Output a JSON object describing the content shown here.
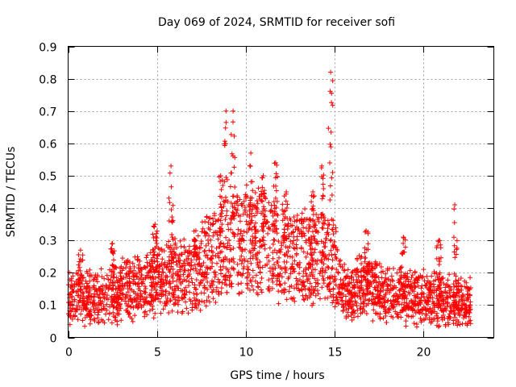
{
  "chart_data": {
    "type": "scatter",
    "title": "Day 069 of 2024, SRMTID for receiver sofi",
    "xlabel": "GPS time / hours",
    "ylabel": "SRMTID / TECUs",
    "xlim": [
      0,
      24
    ],
    "ylim": [
      0,
      0.9
    ],
    "xticks": [
      0,
      5,
      10,
      15,
      20
    ],
    "yticks": [
      0,
      0.1,
      0.2,
      0.3,
      0.4,
      0.5,
      0.6,
      0.7,
      0.8,
      0.9
    ],
    "xtick_labels": [
      "0",
      "5",
      "10",
      "15",
      "20"
    ],
    "ytick_labels": [
      "0",
      "0.1",
      "0.2",
      "0.3",
      "0.4",
      "0.5",
      "0.6",
      "0.7",
      "0.8",
      "0.9"
    ],
    "grid": true,
    "marker": "+",
    "color": "#ff0000",
    "series": [
      {
        "name": "SRMTID",
        "x_range": [
          0,
          22.7
        ],
        "baseline_trend": [
          {
            "x": 0,
            "y": 0.11
          },
          {
            "x": 2,
            "y": 0.12
          },
          {
            "x": 4,
            "y": 0.15
          },
          {
            "x": 5.5,
            "y": 0.18
          },
          {
            "x": 7,
            "y": 0.18
          },
          {
            "x": 8.5,
            "y": 0.26
          },
          {
            "x": 9.5,
            "y": 0.3
          },
          {
            "x": 11,
            "y": 0.27
          },
          {
            "x": 12.5,
            "y": 0.24
          },
          {
            "x": 14,
            "y": 0.24
          },
          {
            "x": 15,
            "y": 0.22
          },
          {
            "x": 15.5,
            "y": 0.13
          },
          {
            "x": 17,
            "y": 0.15
          },
          {
            "x": 19,
            "y": 0.12
          },
          {
            "x": 21,
            "y": 0.11
          },
          {
            "x": 22.7,
            "y": 0.1
          }
        ],
        "spikes": [
          {
            "x": 0.7,
            "ymax": 0.27
          },
          {
            "x": 2.5,
            "ymax": 0.29
          },
          {
            "x": 4.9,
            "ymax": 0.35
          },
          {
            "x": 5.8,
            "ymax": 0.53
          },
          {
            "x": 7.2,
            "ymax": 0.33
          },
          {
            "x": 8.6,
            "ymax": 0.5
          },
          {
            "x": 8.9,
            "ymax": 0.7
          },
          {
            "x": 9.3,
            "ymax": 0.7
          },
          {
            "x": 10.3,
            "ymax": 0.57
          },
          {
            "x": 11.0,
            "ymax": 0.5
          },
          {
            "x": 11.7,
            "ymax": 0.54
          },
          {
            "x": 12.3,
            "ymax": 0.45
          },
          {
            "x": 13.8,
            "ymax": 0.45
          },
          {
            "x": 14.3,
            "ymax": 0.53
          },
          {
            "x": 14.8,
            "ymax": 0.82
          },
          {
            "x": 16.8,
            "ymax": 0.33
          },
          {
            "x": 18.9,
            "ymax": 0.31
          },
          {
            "x": 20.9,
            "ymax": 0.3
          },
          {
            "x": 21.8,
            "ymax": 0.41
          }
        ]
      }
    ]
  }
}
